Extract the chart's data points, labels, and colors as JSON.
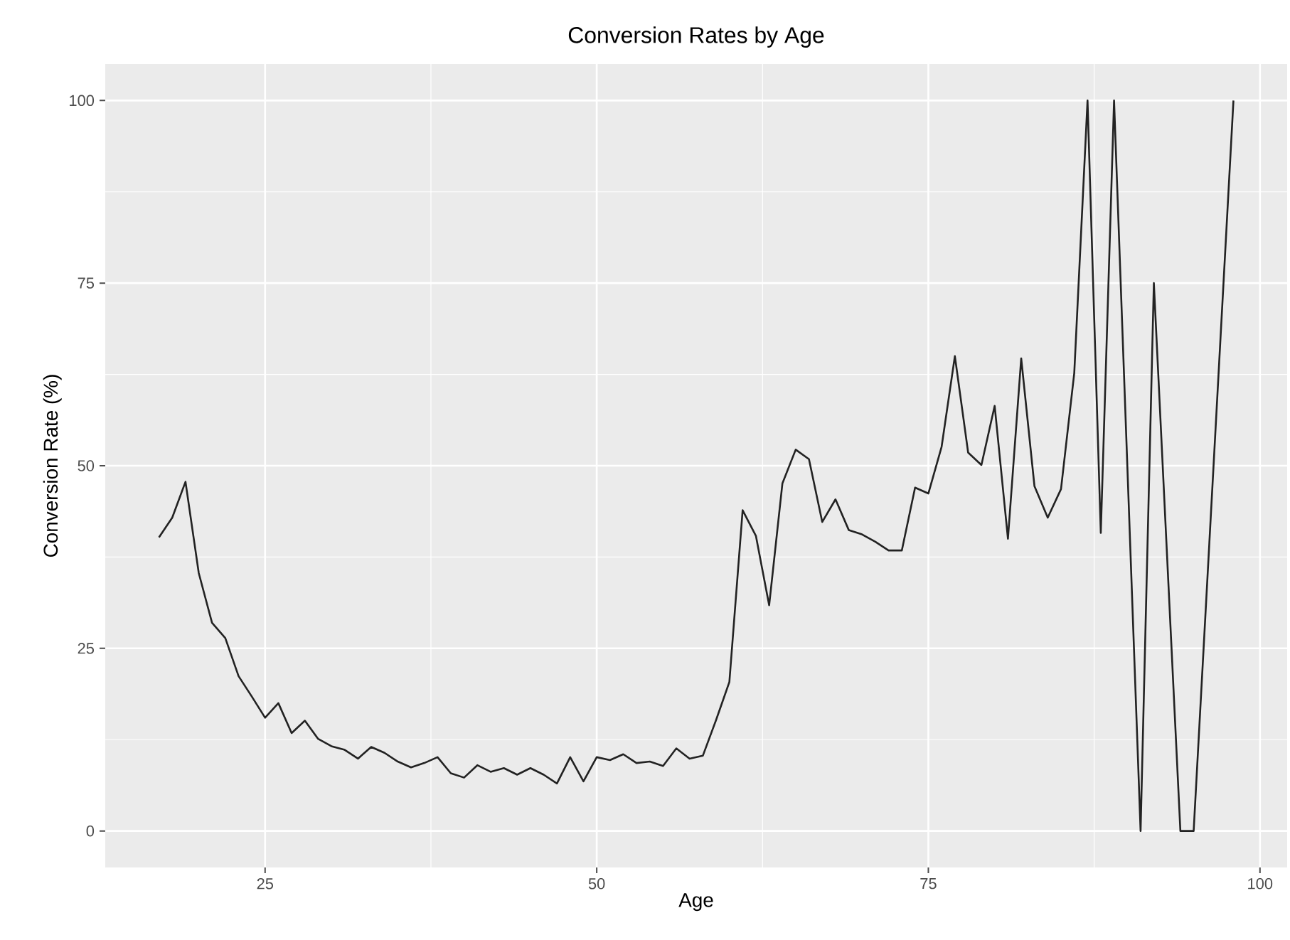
{
  "chart_data": {
    "type": "line",
    "title": "Conversion Rates by Age",
    "xlabel": "Age",
    "ylabel": "Conversion Rate (%)",
    "x": [
      17,
      18,
      19,
      20,
      21,
      22,
      23,
      24,
      25,
      26,
      27,
      28,
      29,
      30,
      31,
      32,
      33,
      34,
      35,
      36,
      37,
      38,
      39,
      40,
      41,
      42,
      43,
      44,
      45,
      46,
      47,
      48,
      49,
      50,
      51,
      52,
      53,
      54,
      55,
      56,
      57,
      58,
      59,
      60,
      61,
      62,
      63,
      64,
      65,
      66,
      67,
      68,
      69,
      70,
      71,
      72,
      73,
      74,
      75,
      76,
      77,
      78,
      79,
      80,
      81,
      82,
      83,
      84,
      85,
      86,
      87,
      88,
      89,
      91,
      92,
      94,
      95,
      98
    ],
    "values": [
      40.2,
      42.9,
      47.8,
      35.3,
      28.5,
      26.4,
      21.2,
      18.4,
      15.5,
      17.5,
      13.4,
      15.1,
      12.6,
      11.6,
      11.1,
      9.9,
      11.5,
      10.7,
      9.5,
      8.7,
      9.3,
      10.1,
      7.9,
      7.3,
      9.0,
      8.1,
      8.6,
      7.7,
      8.6,
      7.7,
      6.5,
      10.1,
      6.8,
      10.1,
      9.7,
      10.5,
      9.3,
      9.5,
      8.9,
      11.3,
      9.9,
      10.3,
      15.2,
      20.4,
      43.9,
      40.4,
      30.9,
      47.6,
      52.2,
      50.9,
      42.3,
      45.4,
      41.2,
      40.6,
      39.6,
      38.4,
      38.4,
      47.0,
      46.2,
      52.6,
      65.0,
      51.8,
      50.1,
      58.2,
      40.0,
      64.7,
      47.2,
      42.9,
      46.8,
      62.7,
      100,
      40.8,
      100,
      0,
      75,
      0,
      0,
      100
    ],
    "color": "#222222",
    "xlim": [
      12.95,
      102.05
    ],
    "ylim": [
      -5,
      105
    ],
    "xticks": [
      25,
      50,
      75,
      100
    ],
    "yticks": [
      0,
      25,
      50,
      75,
      100
    ],
    "grid": true
  }
}
